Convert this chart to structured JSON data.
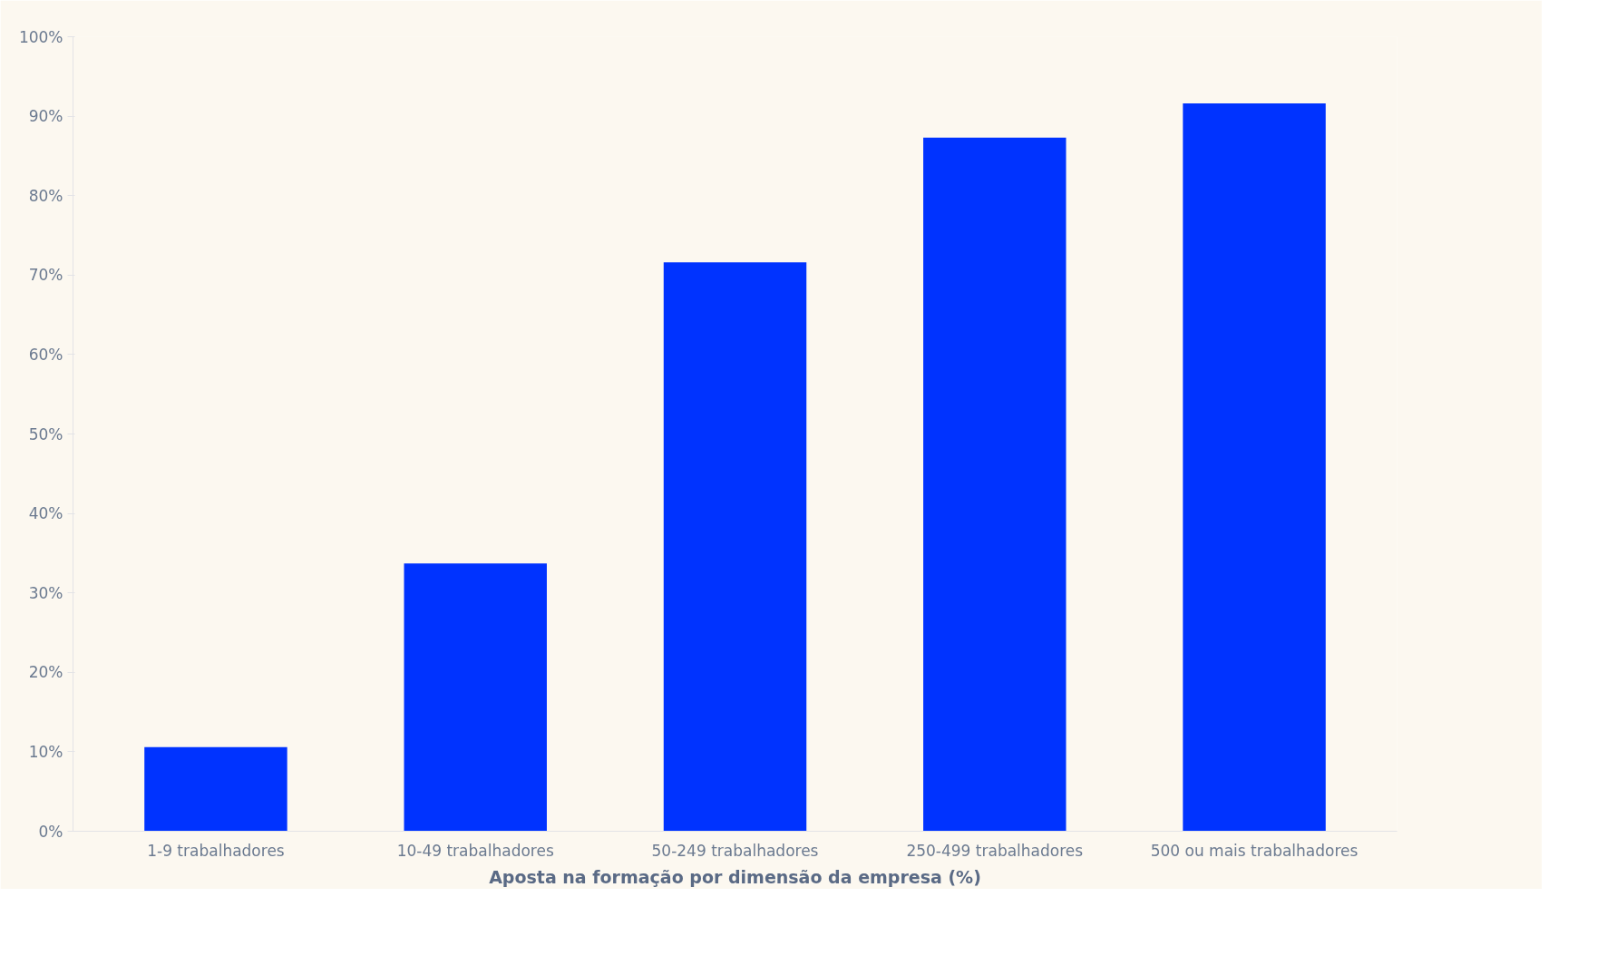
{
  "chart_data": {
    "type": "bar",
    "xlabel": "Aposta na formação por dimensão da empresa (%)",
    "categories": [
      "1-9 trabalhadores",
      "10-49 trabalhadores",
      "50-249 trabalhadores",
      "250-499 trabalhadores",
      "500 ou mais trabalhadores"
    ],
    "values": [
      10.6,
      33.7,
      71.6,
      87.3,
      91.6
    ],
    "color": "#0033ff",
    "ylim": [
      0,
      100
    ],
    "yticks": [
      {
        "value": 0,
        "label": "0%"
      },
      {
        "value": 10,
        "label": "10%"
      },
      {
        "value": 20,
        "label": "20%"
      },
      {
        "value": 30,
        "label": "30%"
      },
      {
        "value": 40,
        "label": "40%"
      },
      {
        "value": 50,
        "label": "50%"
      },
      {
        "value": 60,
        "label": "60%"
      },
      {
        "value": 70,
        "label": "70%"
      },
      {
        "value": 80,
        "label": "80%"
      },
      {
        "value": 90,
        "label": "90%"
      },
      {
        "value": 100,
        "label": "100%"
      }
    ],
    "grid": false
  }
}
